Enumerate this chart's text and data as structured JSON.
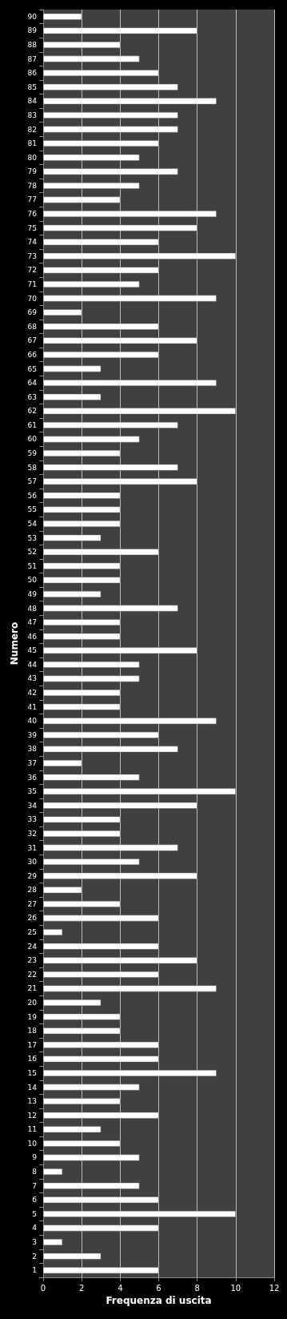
{
  "chart_data": {
    "type": "bar",
    "orientation": "horizontal",
    "xlabel": "Frequenza di uscita",
    "ylabel": "Numero",
    "categories": [
      "90",
      "89",
      "88",
      "87",
      "86",
      "85",
      "84",
      "83",
      "82",
      "81",
      "80",
      "79",
      "78",
      "77",
      "76",
      "75",
      "74",
      "73",
      "72",
      "71",
      "70",
      "69",
      "68",
      "67",
      "66",
      "65",
      "64",
      "63",
      "62",
      "61",
      "60",
      "59",
      "58",
      "57",
      "56",
      "55",
      "54",
      "53",
      "52",
      "51",
      "50",
      "49",
      "48",
      "47",
      "46",
      "45",
      "44",
      "43",
      "42",
      "41",
      "40",
      "39",
      "38",
      "37",
      "36",
      "35",
      "34",
      "33",
      "32",
      "31",
      "30",
      "29",
      "28",
      "27",
      "26",
      "25",
      "24",
      "23",
      "22",
      "21",
      "20",
      "19",
      "18",
      "17",
      "16",
      "15",
      "14",
      "13",
      "12",
      "11",
      "10",
      "9",
      "8",
      "7",
      "6",
      "5",
      "4",
      "3",
      "2",
      "1"
    ],
    "values": [
      2,
      8,
      4,
      5,
      6,
      7,
      9,
      7,
      7,
      6,
      5,
      7,
      5,
      4,
      9,
      8,
      6,
      10,
      6,
      5,
      9,
      2,
      6,
      8,
      6,
      3,
      9,
      3,
      10,
      7,
      5,
      4,
      7,
      8,
      4,
      4,
      4,
      3,
      6,
      4,
      4,
      3,
      7,
      4,
      4,
      8,
      5,
      5,
      4,
      4,
      9,
      6,
      7,
      2,
      5,
      10,
      8,
      4,
      4,
      7,
      5,
      8,
      2,
      4,
      6,
      1,
      6,
      8,
      6,
      9,
      3,
      4,
      4,
      6,
      6,
      9,
      5,
      4,
      6,
      3,
      4,
      5,
      1,
      5,
      6,
      10,
      6,
      1,
      3,
      6
    ],
    "color": "#ffffff",
    "xlim": [
      0,
      12
    ],
    "xticks": [
      0,
      2,
      4,
      6,
      8,
      10,
      12
    ],
    "grid": "x"
  }
}
